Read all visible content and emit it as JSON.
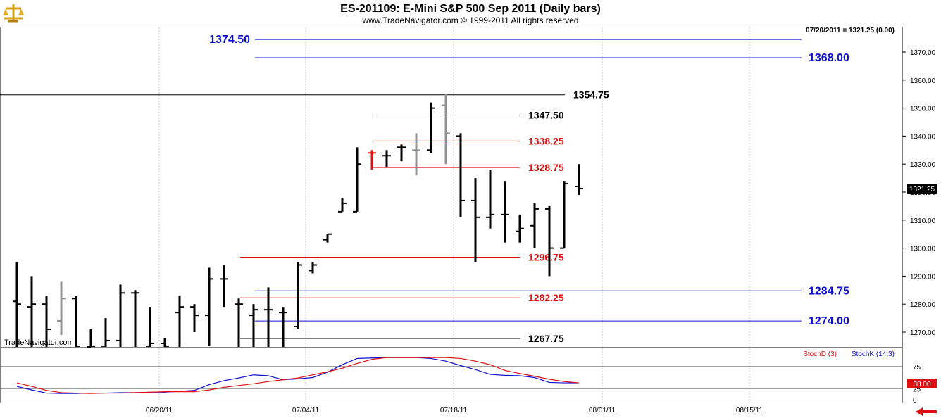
{
  "header": {
    "title": "ES-201109:  E-Mini S&P 500 Sep 2011  (Daily bars)",
    "subtitle": "www.TradeNavigator.com © 1999-2011 All rights reserved",
    "last_readout": "07/20/2011 = 1321.25 (0.00)",
    "watermark": "TradeNavigator.com"
  },
  "colors": {
    "blue": "#1010d0",
    "red": "#e01010",
    "black": "#000000",
    "grid": "#c8c8c8",
    "gray_bar": "#909090",
    "green": "#22dd22"
  },
  "chart_data": {
    "type": "ohlc",
    "price_axis": {
      "ylim": [
        1262.5,
        1379
      ],
      "ticks": [
        "1270.00",
        "1280.00",
        "1290.00",
        "1300.00",
        "1310.00",
        "1320.00",
        "1330.00",
        "1340.00",
        "1350.00",
        "1360.00",
        "1370.00"
      ],
      "current_price_label": "1321.25"
    },
    "x_axis": {
      "date_labels": [
        "06/20/11",
        "07/04/11",
        "07/18/11",
        "08/01/11",
        "08/15/11"
      ]
    },
    "bars": [
      {
        "o": 1281,
        "h": 1295,
        "l": 1263,
        "c": 1280,
        "color": "black"
      },
      {
        "o": 1279,
        "h": 1290,
        "l": 1263,
        "c": 1280,
        "color": "black"
      },
      {
        "o": 1280,
        "h": 1283,
        "l": 1263,
        "c": 1271,
        "color": "black"
      },
      {
        "o": 1274,
        "h": 1288,
        "l": 1269,
        "c": 1282,
        "color": "gray"
      },
      {
        "o": 1282,
        "h": 1283,
        "l": 1263,
        "c": 1265,
        "color": "black"
      },
      {
        "o": 1263,
        "h": 1271,
        "l": 1263,
        "c": 1265,
        "color": "black"
      },
      {
        "o": 1265,
        "h": 1275,
        "l": 1263,
        "c": 1267,
        "color": "black"
      },
      {
        "o": 1267,
        "h": 1287,
        "l": 1263,
        "c": 1284,
        "color": "black"
      },
      {
        "o": 1284,
        "h": 1285,
        "l": 1263,
        "c": 1284,
        "color": "black"
      },
      {
        "o": 1265,
        "h": 1279,
        "l": 1263,
        "c": 1266,
        "color": "black"
      },
      {
        "o": 1266,
        "h": 1268,
        "l": 1263,
        "c": 1265,
        "color": "black"
      },
      {
        "o": 1277,
        "h": 1283,
        "l": 1263,
        "c": 1279,
        "color": "black"
      },
      {
        "o": 1279,
        "h": 1280,
        "l": 1270,
        "c": 1276,
        "color": "black"
      },
      {
        "o": 1276,
        "h": 1293,
        "l": 1265,
        "c": 1289,
        "color": "black"
      },
      {
        "o": 1289,
        "h": 1294,
        "l": 1279,
        "c": 1289,
        "color": "black"
      },
      {
        "o": 1280,
        "h": 1282,
        "l": 1263,
        "c": 1280,
        "color": "black"
      },
      {
        "o": 1276,
        "h": 1280,
        "l": 1263,
        "c": 1278,
        "color": "black"
      },
      {
        "o": 1278,
        "h": 1286,
        "l": 1263,
        "c": 1278,
        "color": "black"
      },
      {
        "o": 1277,
        "h": 1279,
        "l": 1263,
        "c": 1277,
        "color": "black"
      },
      {
        "o": 1272,
        "h": 1295,
        "l": 1271,
        "c": 1294,
        "color": "black"
      },
      {
        "o": 1292,
        "h": 1295,
        "l": 1291,
        "c": 1294,
        "color": "black"
      },
      {
        "o": 1303,
        "h": 1305,
        "l": 1302,
        "c": 1305,
        "color": "black"
      },
      {
        "o": 1313,
        "h": 1318,
        "l": 1313,
        "c": 1316,
        "color": "black"
      },
      {
        "o": 1313,
        "h": 1336,
        "l": 1313,
        "c": 1330,
        "color": "black"
      },
      {
        "o": 1334,
        "h": 1335,
        "l": 1328,
        "c": 1334,
        "color": "red"
      },
      {
        "o": 1333,
        "h": 1335,
        "l": 1329,
        "c": 1333,
        "color": "black"
      },
      {
        "o": 1336,
        "h": 1337,
        "l": 1331,
        "c": 1336,
        "color": "black"
      },
      {
        "o": 1335,
        "h": 1341,
        "l": 1326,
        "c": 1335,
        "color": "gray"
      },
      {
        "o": 1335,
        "h": 1352,
        "l": 1334,
        "c": 1350,
        "color": "black"
      },
      {
        "o": 1351,
        "h": 1355,
        "l": 1330,
        "c": 1341,
        "color": "gray"
      },
      {
        "o": 1340,
        "h": 1341,
        "l": 1311,
        "c": 1317,
        "color": "black"
      },
      {
        "o": 1317,
        "h": 1325,
        "l": 1295,
        "c": 1311,
        "color": "black"
      },
      {
        "o": 1311,
        "h": 1328,
        "l": 1307,
        "c": 1312,
        "color": "black"
      },
      {
        "o": 1312,
        "h": 1324,
        "l": 1302,
        "c": 1312,
        "color": "black"
      },
      {
        "o": 1306,
        "h": 1312,
        "l": 1302,
        "c": 1307,
        "color": "black"
      },
      {
        "o": 1308,
        "h": 1316,
        "l": 1300,
        "c": 1314,
        "color": "black"
      },
      {
        "o": 1314,
        "h": 1315,
        "l": 1290,
        "c": 1300,
        "color": "black"
      },
      {
        "o": 1300,
        "h": 1324,
        "l": 1300,
        "c": 1323,
        "color": "black"
      },
      {
        "o": 1322,
        "h": 1330,
        "l": 1319,
        "c": 1321.25,
        "color": "black"
      }
    ],
    "levels": [
      {
        "label": "1374.50",
        "value": 1374.5,
        "color": "blue",
        "side": "left"
      },
      {
        "label": "1368.00",
        "value": 1368,
        "color": "blue",
        "side": "right"
      },
      {
        "label": "1354.75",
        "value": 1354.75,
        "color": "black",
        "side": "mid"
      },
      {
        "label": "1347.50",
        "value": 1347.5,
        "color": "black",
        "side": "mid"
      },
      {
        "label": "1338.25",
        "value": 1338.25,
        "color": "red",
        "side": "mid"
      },
      {
        "label": "1328.75",
        "value": 1328.75,
        "color": "red",
        "side": "mid"
      },
      {
        "label": "1296.75",
        "value": 1296.75,
        "color": "red",
        "side": "mid"
      },
      {
        "label": "1284.75",
        "value": 1284.75,
        "color": "blue",
        "side": "right"
      },
      {
        "label": "1282.25",
        "value": 1282.25,
        "color": "red",
        "side": "mid"
      },
      {
        "label": "1274.00",
        "value": 1274,
        "color": "blue",
        "side": "right"
      },
      {
        "label": "1267.75",
        "value": 1267.75,
        "color": "black",
        "side": "mid"
      }
    ],
    "stochastic": {
      "d_label": "StochD (3)",
      "k_label": "StochK (14,3)",
      "ticks": [
        "75",
        "25",
        "0"
      ],
      "current_label": "38.00",
      "stoch_d": [
        38,
        30,
        21,
        16,
        15,
        14,
        15,
        15,
        16,
        17,
        18,
        18,
        18,
        22,
        28,
        32,
        36,
        41,
        45,
        49,
        56,
        63,
        71,
        82,
        91,
        95,
        95,
        95,
        95,
        95,
        93,
        87,
        79,
        66,
        59,
        53,
        46,
        41,
        38
      ],
      "stoch_k": [
        30,
        22,
        15,
        14,
        14,
        15,
        15,
        16,
        16,
        17,
        17,
        19,
        21,
        34,
        43,
        49,
        56,
        54,
        45,
        47,
        50,
        62,
        79,
        93,
        94,
        95,
        95,
        95,
        93,
        87,
        77,
        68,
        57,
        55,
        54,
        50,
        39,
        38,
        38
      ]
    }
  }
}
